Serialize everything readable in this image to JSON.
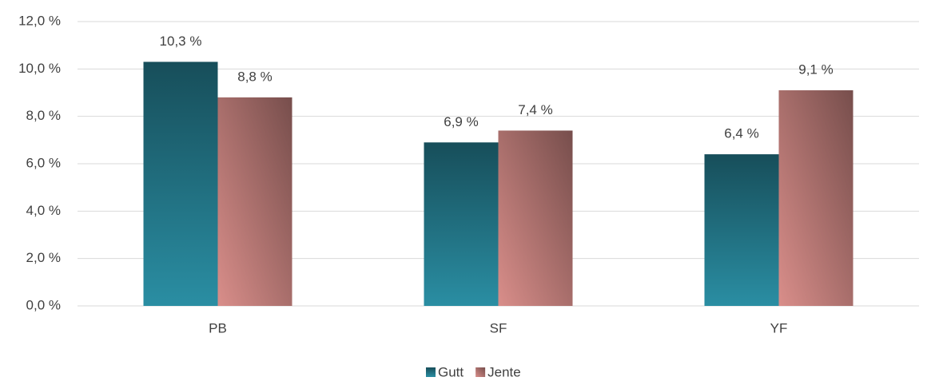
{
  "chart_data": {
    "type": "bar",
    "categories": [
      "PB",
      "SF",
      "YF"
    ],
    "series": [
      {
        "name": "Gutt",
        "color": "#2a8ea3",
        "values": [
          10.3,
          6.9,
          6.4
        ],
        "value_labels": [
          "10,3 %",
          "6,9 %",
          "6,4 %"
        ]
      },
      {
        "name": "Jente",
        "color": "#d98e8a",
        "values": [
          8.8,
          7.4,
          9.1
        ],
        "value_labels": [
          "8,8 %",
          "7,4 %",
          "9,1 %"
        ]
      }
    ],
    "ylim": [
      0,
      12
    ],
    "yticks": [
      {
        "value": 0,
        "label": "0,0 %"
      },
      {
        "value": 2,
        "label": "2,0 %"
      },
      {
        "value": 4,
        "label": "4,0 %"
      },
      {
        "value": 6,
        "label": "6,0 %"
      },
      {
        "value": 8,
        "label": "8,0 %"
      },
      {
        "value": 10,
        "label": "10,0 %"
      },
      {
        "value": 12,
        "label": "12,0 %"
      }
    ],
    "grid": true,
    "legend": "bottom"
  }
}
